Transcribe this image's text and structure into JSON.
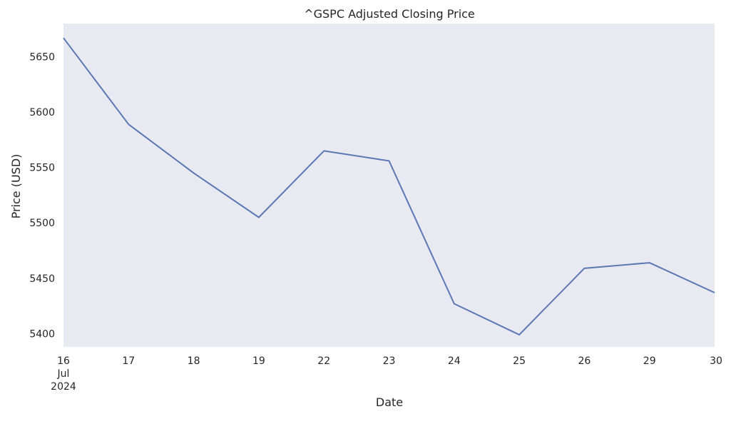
{
  "chart_data": {
    "type": "line",
    "title": "^GSPC Adjusted Closing Price",
    "xlabel": "Date",
    "ylabel": "Price (USD)",
    "x": [
      "16\nJul\n2024",
      "17",
      "18",
      "19",
      "22",
      "23",
      "24",
      "25",
      "26",
      "29",
      "30"
    ],
    "series": [
      {
        "values": [
          5667,
          5589,
          5545,
          5505,
          5565,
          5556,
          5427,
          5399,
          5459,
          5464,
          5437
        ]
      }
    ],
    "ylim": [
      5388,
      5680
    ],
    "yticks": [
      5400,
      5450,
      5500,
      5550,
      5600,
      5650
    ],
    "grid": false,
    "line_color": "#5a78b3",
    "plot_background": "#e9e9f1"
  }
}
